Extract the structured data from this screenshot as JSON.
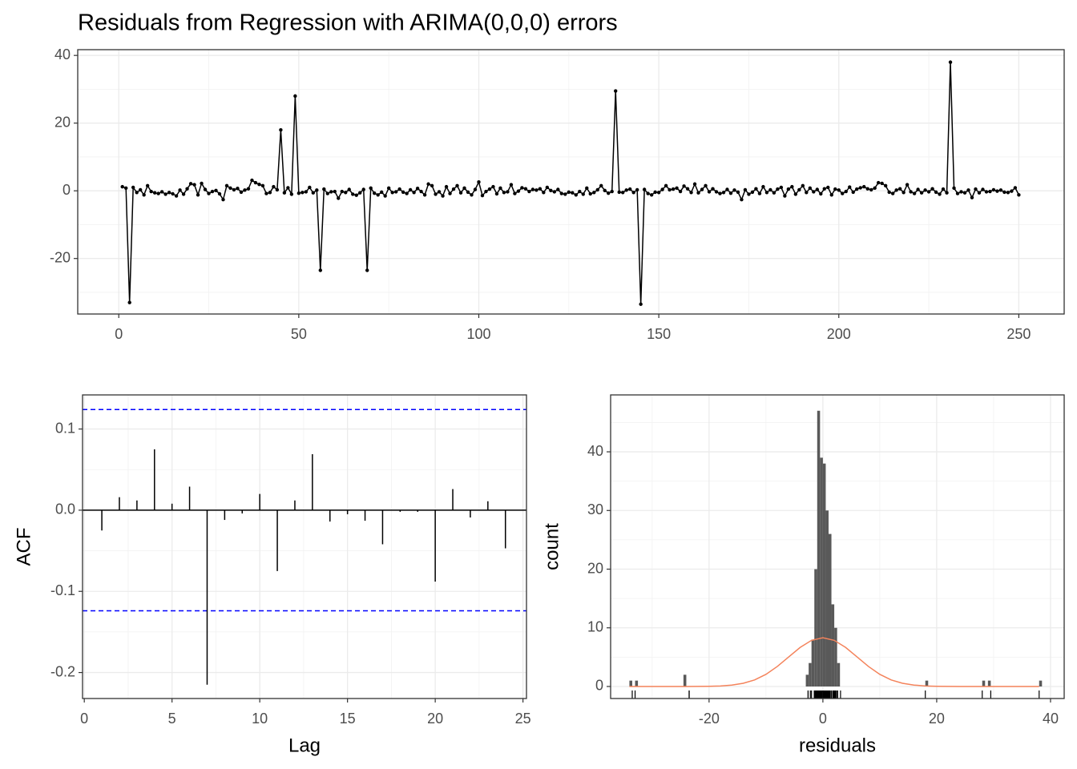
{
  "chart_data": [
    {
      "type": "line",
      "title": "Residuals from Regression with ARIMA(0,0,0) errors",
      "x": [
        1,
        2,
        3,
        4,
        5,
        6,
        7,
        8,
        9,
        10,
        11,
        12,
        13,
        14,
        15,
        16,
        17,
        18,
        19,
        20,
        21,
        22,
        23,
        24,
        25,
        26,
        27,
        28,
        29,
        30,
        31,
        32,
        33,
        34,
        35,
        36,
        37,
        38,
        39,
        40,
        41,
        42,
        43,
        44,
        45,
        46,
        47,
        48,
        49,
        50,
        51,
        52,
        53,
        54,
        55,
        56,
        57,
        58,
        59,
        60,
        61,
        62,
        63,
        64,
        65,
        66,
        67,
        68,
        69,
        70,
        71,
        72,
        73,
        74,
        75,
        76,
        77,
        78,
        79,
        80,
        81,
        82,
        83,
        84,
        85,
        86,
        87,
        88,
        89,
        90,
        91,
        92,
        93,
        94,
        95,
        96,
        97,
        98,
        99,
        100,
        101,
        102,
        103,
        104,
        105,
        106,
        107,
        108,
        109,
        110,
        111,
        112,
        113,
        114,
        115,
        116,
        117,
        118,
        119,
        120,
        121,
        122,
        123,
        124,
        125,
        126,
        127,
        128,
        129,
        130,
        131,
        132,
        133,
        134,
        135,
        136,
        137,
        138,
        139,
        140,
        141,
        142,
        143,
        144,
        145,
        146,
        147,
        148,
        149,
        150,
        151,
        152,
        153,
        154,
        155,
        156,
        157,
        158,
        159,
        160,
        161,
        162,
        163,
        164,
        165,
        166,
        167,
        168,
        169,
        170,
        171,
        172,
        173,
        174,
        175,
        176,
        177,
        178,
        179,
        180,
        181,
        182,
        183,
        184,
        185,
        186,
        187,
        188,
        189,
        190,
        191,
        192,
        193,
        194,
        195,
        196,
        197,
        198,
        199,
        200,
        201,
        202,
        203,
        204,
        205,
        206,
        207,
        208,
        209,
        210,
        211,
        212,
        213,
        214,
        215,
        216,
        217,
        218,
        219,
        220,
        221,
        222,
        223,
        224,
        225,
        226,
        227,
        228,
        229,
        230,
        231,
        232,
        233,
        234,
        235,
        236,
        237,
        238,
        239,
        240,
        241,
        242,
        243,
        244,
        245,
        246,
        247,
        248,
        249,
        250
      ],
      "values": [
        1.2,
        0.8,
        -33,
        1.0,
        -0.5,
        0.3,
        -1.2,
        1.5,
        -0.2,
        -0.6,
        -0.8,
        -0.3,
        -1.0,
        -0.5,
        -0.9,
        -1.5,
        0.2,
        -1.0,
        0.6,
        2.1,
        1.8,
        -1.2,
        2.2,
        0.4,
        -0.8,
        -0.2,
        0.1,
        -0.9,
        -2.6,
        1.5,
        0.8,
        0.3,
        0.7,
        -0.4,
        0.2,
        0.6,
        3.1,
        2.4,
        1.9,
        1.5,
        -0.8,
        -0.5,
        1.2,
        0.3,
        18,
        -0.6,
        0.9,
        -1.0,
        28,
        -0.7,
        -0.5,
        -0.3,
        1.0,
        -0.6,
        0.2,
        -23.5,
        0.5,
        -0.8,
        -0.3,
        -0.2,
        -2.2,
        -0.2,
        -0.5,
        0.4,
        -1.0,
        -1.3,
        -0.6,
        0.4,
        -23.5,
        0.8,
        -0.7,
        -1.2,
        -0.4,
        -1.5,
        0.8,
        -0.5,
        -0.3,
        0.5,
        -0.4,
        -0.8,
        0.3,
        -0.5,
        0.7,
        -0.2,
        -1.2,
        2.0,
        1.5,
        -1.0,
        -0.3,
        -1.5,
        1.2,
        -0.8,
        0.5,
        1.5,
        -0.6,
        0.8,
        -0.4,
        -1.2,
        0.4,
        2.6,
        -1.4,
        -0.2,
        0.5,
        1.2,
        -0.9,
        0.8,
        -0.5,
        -0.3,
        1.8,
        -0.8,
        -0.1,
        0.9,
        0.6,
        -0.2,
        0.4,
        0.2,
        0.6,
        -0.5,
        1.0,
        0.1,
        -0.3,
        0.4,
        -0.8,
        -1.0,
        -0.4,
        -0.6,
        -1.2,
        -0.2,
        -1.0,
        0.8,
        -0.9,
        -0.5,
        0.3,
        1.5,
        0.1,
        -0.7,
        -0.2,
        29.5,
        -0.4,
        -0.5,
        0.2,
        0.5,
        -0.5,
        0.3,
        -33.5,
        0.4,
        -0.8,
        -1.2,
        -0.4,
        -0.5,
        0.4,
        1.5,
        0.3,
        0.5,
        0.8,
        -0.2,
        1.4,
        0.6,
        -0.5,
        2.0,
        -0.6,
        0.4,
        1.5,
        -0.3,
        0.6,
        -0.3,
        -0.8,
        -0.5,
        0.4,
        -0.7,
        0.2,
        -0.4,
        -2.6,
        0.3,
        -1.0,
        -0.4,
        0.6,
        -0.8,
        1.2,
        -0.5,
        0.3,
        -0.6,
        0.5,
        1.0,
        -1.5,
        0.5,
        1.2,
        -1.0,
        0.3,
        1.5,
        -0.5,
        0.8,
        -0.3,
        0.4,
        -0.9,
        0.6,
        1.0,
        -1.2,
        0.5,
        0.2,
        -0.8,
        -0.2,
        1.1,
        -0.4,
        0.5,
        0.9,
        1.2,
        0.6,
        0.3,
        0.8,
        2.4,
        2.2,
        1.5,
        -0.4,
        -0.8,
        0.2,
        0.6,
        -0.5,
        1.8,
        -0.3,
        -0.8,
        0.4,
        -0.6,
        0.2,
        -0.3,
        0.6,
        -0.4,
        -1.0,
        0.5,
        -0.6,
        38,
        0.8,
        -0.8,
        -0.3,
        -0.6,
        0.2,
        -2.0,
        0.5,
        -0.6,
        0.4,
        -0.3,
        -0.2,
        0.3,
        -0.1,
        0.2,
        -0.4,
        -0.5,
        -0.1,
        0.9,
        -1.2
      ],
      "color": "#000000",
      "xlim": [
        -11.4,
        262.6
      ],
      "ylim": [
        -36.4,
        41.7
      ],
      "xticks": [
        0,
        50,
        100,
        150,
        200,
        250
      ],
      "yticks": [
        -20,
        0,
        20,
        40
      ],
      "xminor": [
        25,
        75,
        125,
        175,
        225
      ],
      "yminor": [
        -30,
        -10,
        10,
        30
      ],
      "grid": true
    },
    {
      "type": "acf",
      "x_label": "Lag",
      "y_label": "ACF",
      "lags": [
        1,
        2,
        3,
        4,
        5,
        6,
        7,
        8,
        9,
        10,
        11,
        12,
        13,
        14,
        15,
        16,
        17,
        18,
        19,
        20,
        21,
        22,
        23,
        24
      ],
      "values": [
        -0.025,
        0.016,
        0.012,
        0.075,
        0.008,
        0.029,
        -0.215,
        -0.012,
        -0.004,
        0.02,
        -0.075,
        0.012,
        0.069,
        -0.014,
        -0.005,
        -0.013,
        -0.042,
        -0.002,
        -0.002,
        -0.088,
        0.026,
        -0.009,
        0.011,
        -0.047
      ],
      "color": "#000000",
      "ci_lines": [
        0.124,
        -0.124
      ],
      "ci_color": "#0000ff",
      "xlim": [
        -0.1,
        25.2
      ],
      "ylim": [
        -0.232,
        0.142
      ],
      "xticks": [
        0,
        5,
        10,
        15,
        20,
        25
      ],
      "yticks": [
        -0.2,
        -0.1,
        {
          "value": 0,
          "label": "0.0"
        },
        0.1
      ],
      "xminor": [
        2.5,
        7.5,
        12.5,
        17.5,
        22.5
      ],
      "yminor": [
        -0.15,
        -0.05,
        0.05
      ],
      "grid": true
    },
    {
      "type": "histogram",
      "x_label": "residuals",
      "y_label": "count",
      "bins": [
        -34,
        -33.5,
        -33,
        -32.5,
        -24.5,
        -24,
        -3,
        -2.5,
        -2,
        -1.5,
        -1,
        -0.5,
        0,
        0.5,
        1,
        1.5,
        2,
        2.5,
        3,
        18,
        18.5,
        28,
        28.5,
        29,
        29.5,
        38,
        38.5
      ],
      "counts": [
        1,
        0,
        1,
        0,
        2,
        0,
        2,
        4,
        8,
        20,
        47,
        39,
        38,
        30,
        26,
        14,
        10,
        4,
        0,
        1,
        0,
        1,
        0,
        1,
        0,
        1
      ],
      "color": "#595959",
      "curve": {
        "x": [
          -34,
          -32,
          -30,
          -28,
          -26,
          -24,
          -22,
          -20,
          -18,
          -16,
          -14,
          -12,
          -10,
          -8,
          -6,
          -4,
          -2,
          0,
          2,
          4,
          6,
          8,
          10,
          12,
          14,
          16,
          18,
          20,
          22,
          24,
          26,
          28,
          30,
          32,
          34,
          36,
          38
        ],
        "y": [
          0,
          0,
          0,
          0,
          0,
          0,
          0.01,
          0.03,
          0.09,
          0.24,
          0.55,
          1.12,
          2.07,
          3.42,
          5.04,
          6.65,
          7.86,
          8.31,
          7.86,
          6.65,
          5.04,
          3.42,
          2.07,
          1.12,
          0.55,
          0.24,
          0.09,
          0.03,
          0.01,
          0,
          0,
          0,
          0,
          0,
          0,
          0,
          0
        ],
        "color": "#f4835b"
      },
      "rug": true,
      "xlim": [
        -37.3,
        42.4
      ],
      "ylim": [
        -2.05,
        49.7
      ],
      "xticks": [
        -20,
        0,
        20,
        40
      ],
      "yticks": [
        0,
        10,
        20,
        30,
        40
      ],
      "xminor": [
        -30,
        -10,
        10,
        30
      ],
      "yminor": [
        5,
        15,
        25,
        35,
        45
      ],
      "grid": true
    }
  ]
}
